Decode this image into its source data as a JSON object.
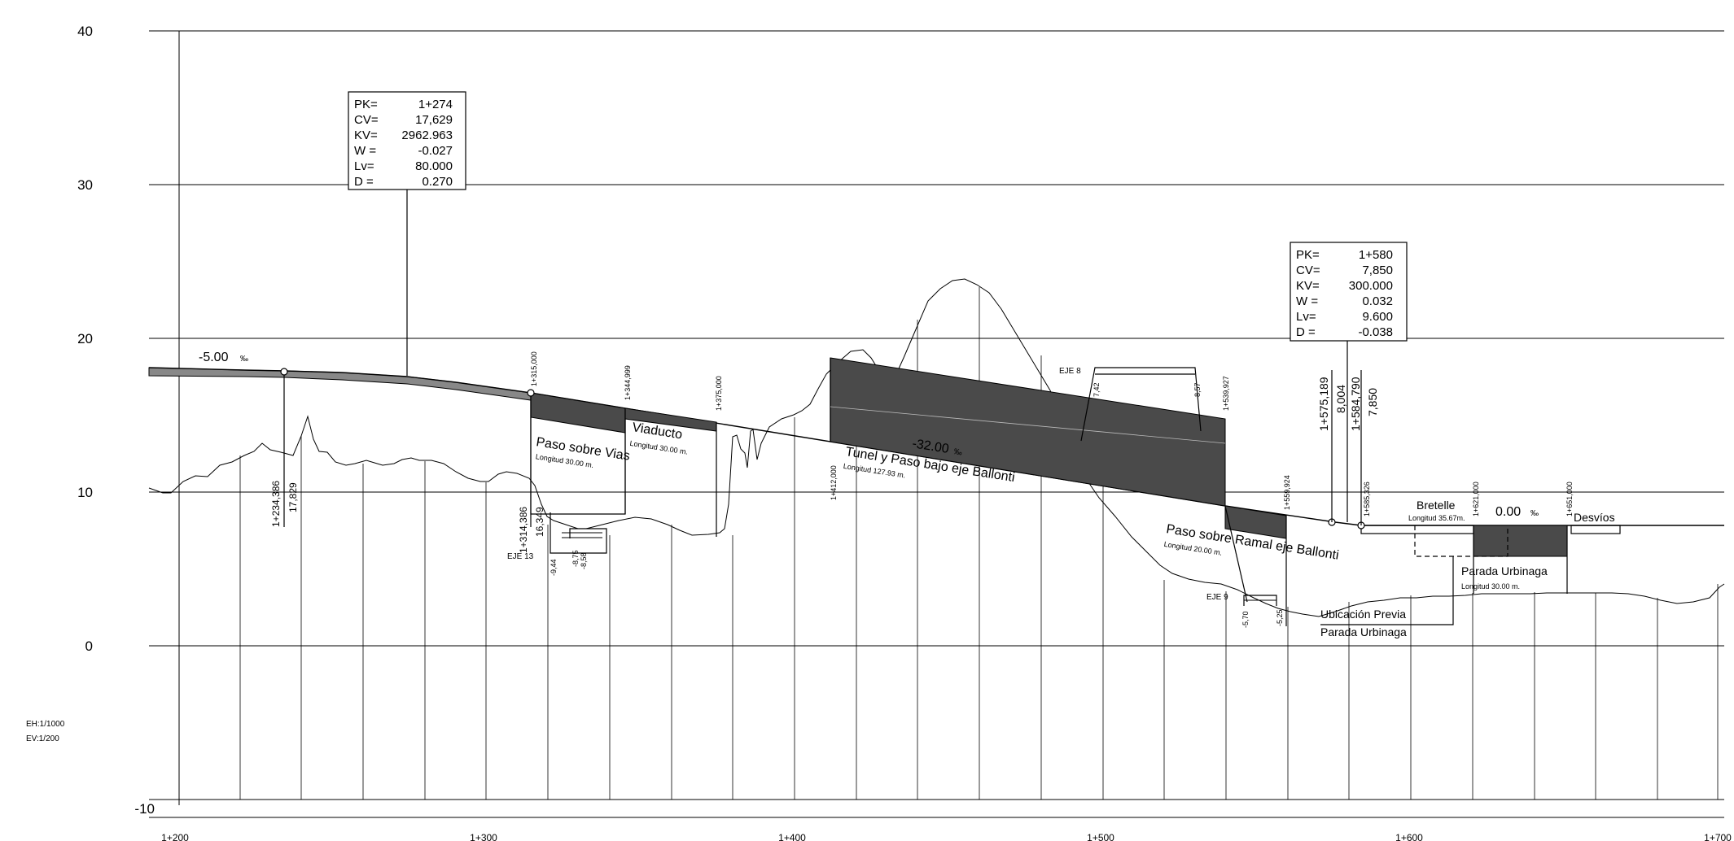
{
  "y_axis": {
    "ticks": [
      "40",
      "30",
      "20",
      "10",
      "0",
      "-10"
    ]
  },
  "x_axis": {
    "ticks": [
      "1+200",
      "1+300",
      "1+400",
      "1+500",
      "1+600",
      "1+700"
    ]
  },
  "scales": {
    "horizontal": "EH:1/1000",
    "vertical": "EV:1/200"
  },
  "vertical_curves": [
    {
      "labels": [
        "PK=",
        "CV=",
        "KV=",
        "W =",
        "Lv=",
        "D ="
      ],
      "values": [
        "1+274",
        "17,629",
        "2962.963",
        "-0.027",
        "80.000",
        "0.270"
      ]
    },
    {
      "labels": [
        "PK=",
        "CV=",
        "KV=",
        "W =",
        "Lv=",
        "D ="
      ],
      "values": [
        "1+580",
        "7,850",
        "300.000",
        "0.032",
        "9.600",
        "-0.038"
      ]
    }
  ],
  "slopes": {
    "s1": "-5.00",
    "s2": "-32.00",
    "s3": "0.00",
    "unit": "‰"
  },
  "structures": {
    "paso_vias": {
      "name": "Paso sobre Vias",
      "length": "Longitud 30.00 m."
    },
    "viaducto": {
      "name": "Viaducto",
      "length": "Longitud 30.00 m."
    },
    "tunel": {
      "name": "Tunel y Paso bajo eje Ballonti",
      "length": "Longitud 127.93 m."
    },
    "paso_ramal": {
      "name": "Paso sobre Ramal eje Ballonti",
      "length": "Longitud 20.00 m."
    },
    "bretelle": {
      "name": "Bretelle",
      "length": "Longitud 35.67m."
    },
    "parada": {
      "name": "Parada Urbinaga",
      "length": "Longitud 30.00 m."
    },
    "desvios": {
      "name": "Desvíos"
    },
    "ubicacion_l1": "Ubicación Previa",
    "ubicacion_l2": "Parada Urbinaga"
  },
  "axes_labels": {
    "eje13": "EJE 13",
    "eje8": "EJE 8",
    "eje9": "EJE 9"
  },
  "stations": {
    "s1234": "1+234,386",
    "z1234": "17,829",
    "s1314": "1+314,386",
    "z1314": "16,349",
    "s1315": "1+315,000",
    "s1344": "1+344,999",
    "s1375": "1+375,000",
    "s1412": "1+412,000",
    "s1539": "1+539,927",
    "s1559": "1+559,924",
    "s1575": "1+575,189",
    "z1575": "8,004",
    "s1584": "1+584,790",
    "z1584": "7,850",
    "s1585": "1+585,326",
    "s1621": "1+621,000",
    "s1651": "1+651,000"
  },
  "small_values": {
    "e13a": "-9,44",
    "e13b": "-8,75",
    "e13c": "-8,58",
    "e8a": "7,42",
    "e8b": "8,57",
    "e9a": "-5,70",
    "e9b": "-5,25"
  }
}
